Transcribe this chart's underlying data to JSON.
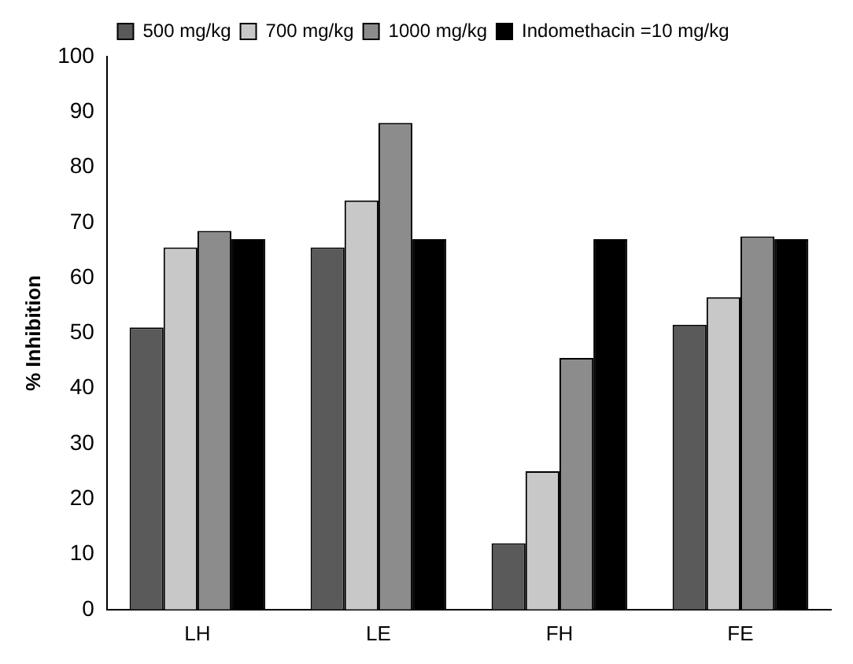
{
  "chart_data": {
    "type": "bar",
    "ylabel": "% Inhibition",
    "categories": [
      "LH",
      "LE",
      "FH",
      "FE"
    ],
    "series": [
      {
        "name": "500 mg/kg",
        "color": "#5a5a5a",
        "values": [
          51,
          65.5,
          12,
          51.5
        ]
      },
      {
        "name": "700 mg/kg",
        "color": "#c8c8c8",
        "values": [
          65.5,
          74,
          25,
          56.5
        ]
      },
      {
        "name": "1000 mg/kg",
        "color": "#8c8c8c",
        "values": [
          68.5,
          88,
          45.5,
          67.5
        ]
      },
      {
        "name": "Indomethacin =10 mg/kg",
        "color": "#000000",
        "values": [
          67,
          67,
          67,
          67
        ]
      }
    ],
    "ylim": [
      0,
      100
    ],
    "yticks": [
      0,
      10,
      20,
      30,
      40,
      50,
      60,
      70,
      80,
      90,
      100
    ],
    "grid": false,
    "legend": "top"
  }
}
